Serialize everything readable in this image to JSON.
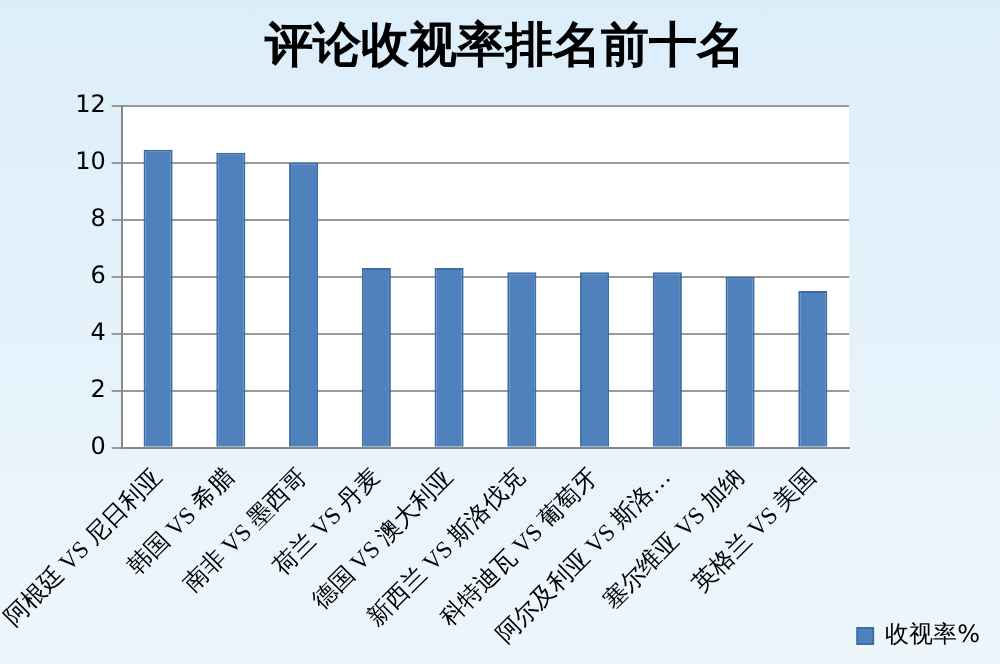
{
  "chart_data": {
    "type": "bar",
    "title": "评论收视率排名前十名",
    "categories": [
      "阿根廷 VS 尼日利亚",
      "韩国 VS 希腊",
      "南非 VS 墨西哥",
      "荷兰 VS 丹麦",
      "德国 VS 澳大利亚",
      "新西兰 VS 斯洛伐克",
      "科特迪瓦 VS 葡萄牙",
      "阿尔及利亚 VS 斯洛…",
      "塞尔维亚 VS 加纳",
      "英格兰 VS 美国"
    ],
    "series": [
      {
        "name": "收视率%",
        "color": "#4f81bd",
        "values": [
          10.45,
          10.35,
          10.0,
          6.3,
          6.3,
          6.15,
          6.15,
          6.15,
          6.0,
          5.5
        ]
      }
    ],
    "ylim": [
      0,
      12
    ],
    "yticks": [
      0,
      2,
      4,
      6,
      8,
      10,
      12
    ],
    "grid": "y",
    "legend": "right"
  }
}
